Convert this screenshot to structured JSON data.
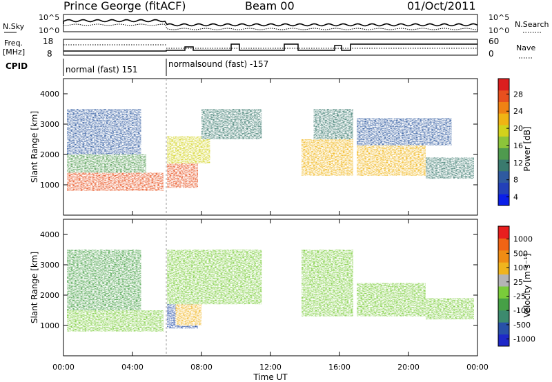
{
  "header": {
    "station": "Prince George (fitACF)",
    "beam": "Beam 00",
    "date": "01/Oct/2011"
  },
  "status_panel": {
    "left_top_label": "N.Sky",
    "left_top_ticks": [
      "10^5",
      "10^0"
    ],
    "right_top_label": "N.Search",
    "right_top_ticks": [
      "10^5",
      "10^0"
    ],
    "left_mid_label_1": "Freq.",
    "left_mid_label_2": "[MHz]",
    "left_mid_ticks": [
      "18",
      "8"
    ],
    "right_mid_label": "Nave",
    "right_mid_ticks": [
      "60",
      "0"
    ],
    "cpid_label": "CPID",
    "cpid_modes": [
      "normal (fast) 151",
      "normalsound (fast) -157"
    ]
  },
  "chart_data": [
    {
      "type": "heatmap",
      "title": "",
      "xlabel": "",
      "ylabel": "Slant Range [km]",
      "x_ticks": [
        "00:00",
        "04:00",
        "08:00",
        "12:00",
        "16:00",
        "20:00",
        "00:00"
      ],
      "y_ticks": [
        1000,
        2000,
        3000,
        4000
      ],
      "ylim": [
        0,
        4500
      ],
      "xlim_hours": [
        0,
        24
      ],
      "colorbar": {
        "label": "Power [dB]",
        "ticks": [
          "28",
          "24",
          "20",
          "16",
          "12",
          "8",
          "4"
        ],
        "colors": [
          "#0a1ee8",
          "#2340b8",
          "#2f5aa0",
          "#3a7a6e",
          "#4f9a4e",
          "#8cc43a",
          "#d2d21c",
          "#f0b414",
          "#f08214",
          "#e8501e",
          "#dc1e1e"
        ]
      },
      "echo_regions": [
        {
          "x": [
            0.2,
            5.8
          ],
          "y": [
            800,
            1400
          ],
          "level": 28
        },
        {
          "x": [
            0.2,
            4.8
          ],
          "y": [
            1400,
            2000
          ],
          "level": 12
        },
        {
          "x": [
            0.2,
            4.5
          ],
          "y": [
            2000,
            3500
          ],
          "level": 6
        },
        {
          "x": [
            6.0,
            7.8
          ],
          "y": [
            900,
            1800
          ],
          "level": 26
        },
        {
          "x": [
            6.0,
            8.5
          ],
          "y": [
            1700,
            2600
          ],
          "level": 18
        },
        {
          "x": [
            8.0,
            11.5
          ],
          "y": [
            2500,
            3500
          ],
          "level": 8
        },
        {
          "x": [
            13.8,
            16.8
          ],
          "y": [
            1300,
            2500
          ],
          "level": 20
        },
        {
          "x": [
            14.5,
            16.8
          ],
          "y": [
            2500,
            3500
          ],
          "level": 8
        },
        {
          "x": [
            17.0,
            21.0
          ],
          "y": [
            1300,
            2300
          ],
          "level": 22
        },
        {
          "x": [
            17.0,
            22.5
          ],
          "y": [
            2300,
            3200
          ],
          "level": 5
        },
        {
          "x": [
            21.0,
            23.8
          ],
          "y": [
            1200,
            1900
          ],
          "level": 10
        }
      ]
    },
    {
      "type": "heatmap",
      "title": "",
      "xlabel": "Time UT",
      "ylabel": "Slant Range [km]",
      "x_ticks": [
        "00:00",
        "04:00",
        "08:00",
        "12:00",
        "16:00",
        "20:00",
        "00:00"
      ],
      "y_ticks": [
        1000,
        2000,
        3000,
        4000
      ],
      "ylim": [
        0,
        4500
      ],
      "xlim_hours": [
        0,
        24
      ],
      "colorbar": {
        "label": "Velocity [m s⁻¹]",
        "ticks": [
          "1000",
          "500",
          "100",
          "25",
          "-25",
          "-100",
          "-500",
          "-1000"
        ],
        "colors": [
          "#1e28c8",
          "#2850a8",
          "#3c8a6e",
          "#46a046",
          "#7acc3a",
          "#b4b4b4",
          "#f0b41e",
          "#f08c14",
          "#f06414",
          "#e81e1e"
        ]
      },
      "echo_regions": [
        {
          "x": [
            0.2,
            5.8
          ],
          "y": [
            800,
            1500
          ],
          "level": "-25"
        },
        {
          "x": [
            0.2,
            4.5
          ],
          "y": [
            1500,
            3500
          ],
          "level": "-100"
        },
        {
          "x": [
            6.0,
            7.8
          ],
          "y": [
            900,
            1800
          ],
          "level": "-500"
        },
        {
          "x": [
            6.5,
            8.0
          ],
          "y": [
            1000,
            1700
          ],
          "level": "100"
        },
        {
          "x": [
            6.0,
            11.5
          ],
          "y": [
            1700,
            3500
          ],
          "level": "-25"
        },
        {
          "x": [
            13.8,
            16.8
          ],
          "y": [
            1300,
            3500
          ],
          "level": "-25"
        },
        {
          "x": [
            17.0,
            21.0
          ],
          "y": [
            1300,
            2400
          ],
          "level": "-25"
        },
        {
          "x": [
            21.0,
            23.8
          ],
          "y": [
            1200,
            1900
          ],
          "level": "-25"
        }
      ]
    }
  ]
}
